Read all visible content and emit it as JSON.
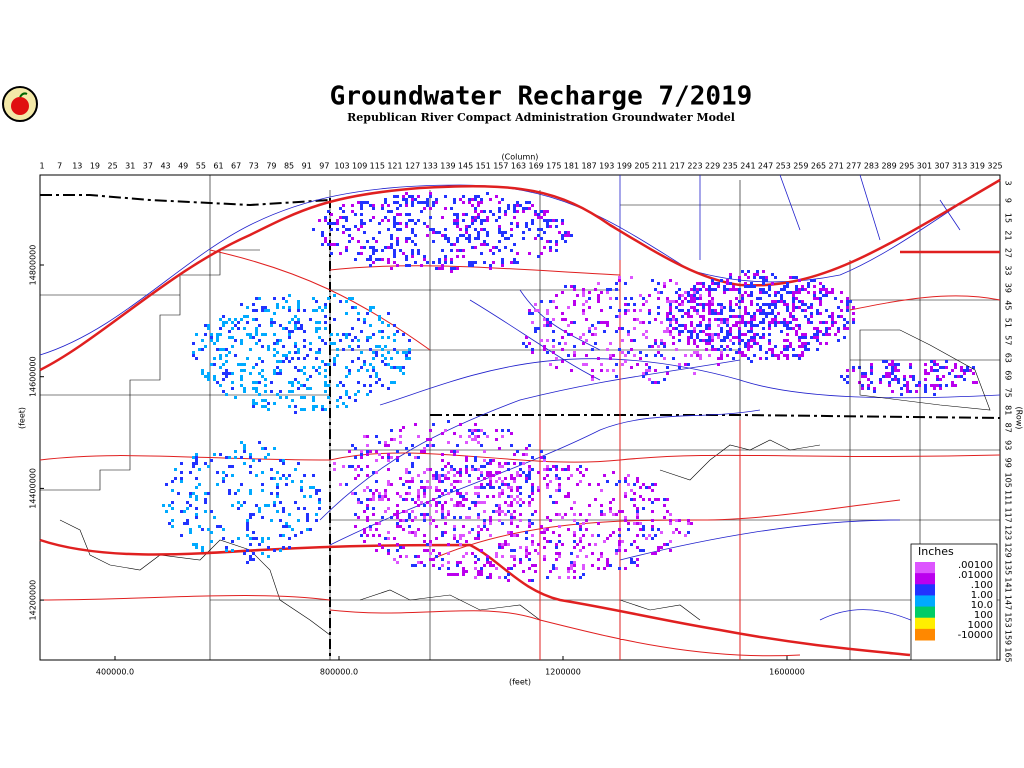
{
  "header": {
    "title": "Groundwater Recharge 7/2019",
    "subtitle": "Republican River Compact Administration Groundwater Model"
  },
  "columns": {
    "label": "(Column)",
    "ticks": [
      1,
      7,
      13,
      19,
      25,
      31,
      37,
      43,
      49,
      55,
      61,
      67,
      73,
      79,
      85,
      91,
      97,
      103,
      109,
      115,
      121,
      127,
      133,
      139,
      145,
      151,
      157,
      163,
      169,
      175,
      181,
      187,
      193,
      199,
      205,
      211,
      217,
      223,
      229,
      235,
      241,
      247,
      253,
      259,
      265,
      271,
      277,
      283,
      289,
      295,
      301,
      307,
      313,
      319,
      325
    ]
  },
  "rows": {
    "label": "(Row)",
    "ticks": [
      3,
      9,
      15,
      21,
      27,
      33,
      39,
      45,
      51,
      57,
      63,
      69,
      75,
      81,
      87,
      93,
      99,
      105,
      111,
      117,
      123,
      129,
      135,
      141,
      147,
      153,
      159,
      165
    ]
  },
  "northing": {
    "label": "(feet)",
    "ticks": [
      14800000,
      14600000,
      14400000,
      14200000
    ]
  },
  "easting": {
    "label": "(feet)",
    "ticks": [
      {
        "value": 400000,
        "label": "400000.0"
      },
      {
        "value": 800000,
        "label": "800000.0"
      },
      1200000,
      1600000
    ]
  },
  "legend": {
    "title": "Inches",
    "items": [
      {
        "label": ".00100",
        "color": "#dd55ff"
      },
      {
        "label": ".01000",
        "color": "#bb00ee"
      },
      {
        "label": ".100",
        "color": "#2233ff"
      },
      {
        "label": "1.00",
        "color": "#00aaff"
      },
      {
        "label": "10.0",
        "color": "#00cc66"
      },
      {
        "label": "100",
        "color": "#ffee00"
      },
      {
        "label": "1000",
        "color": "#ff8800"
      },
      {
        "label": "-10000",
        "color": "#ff5500"
      }
    ]
  }
}
